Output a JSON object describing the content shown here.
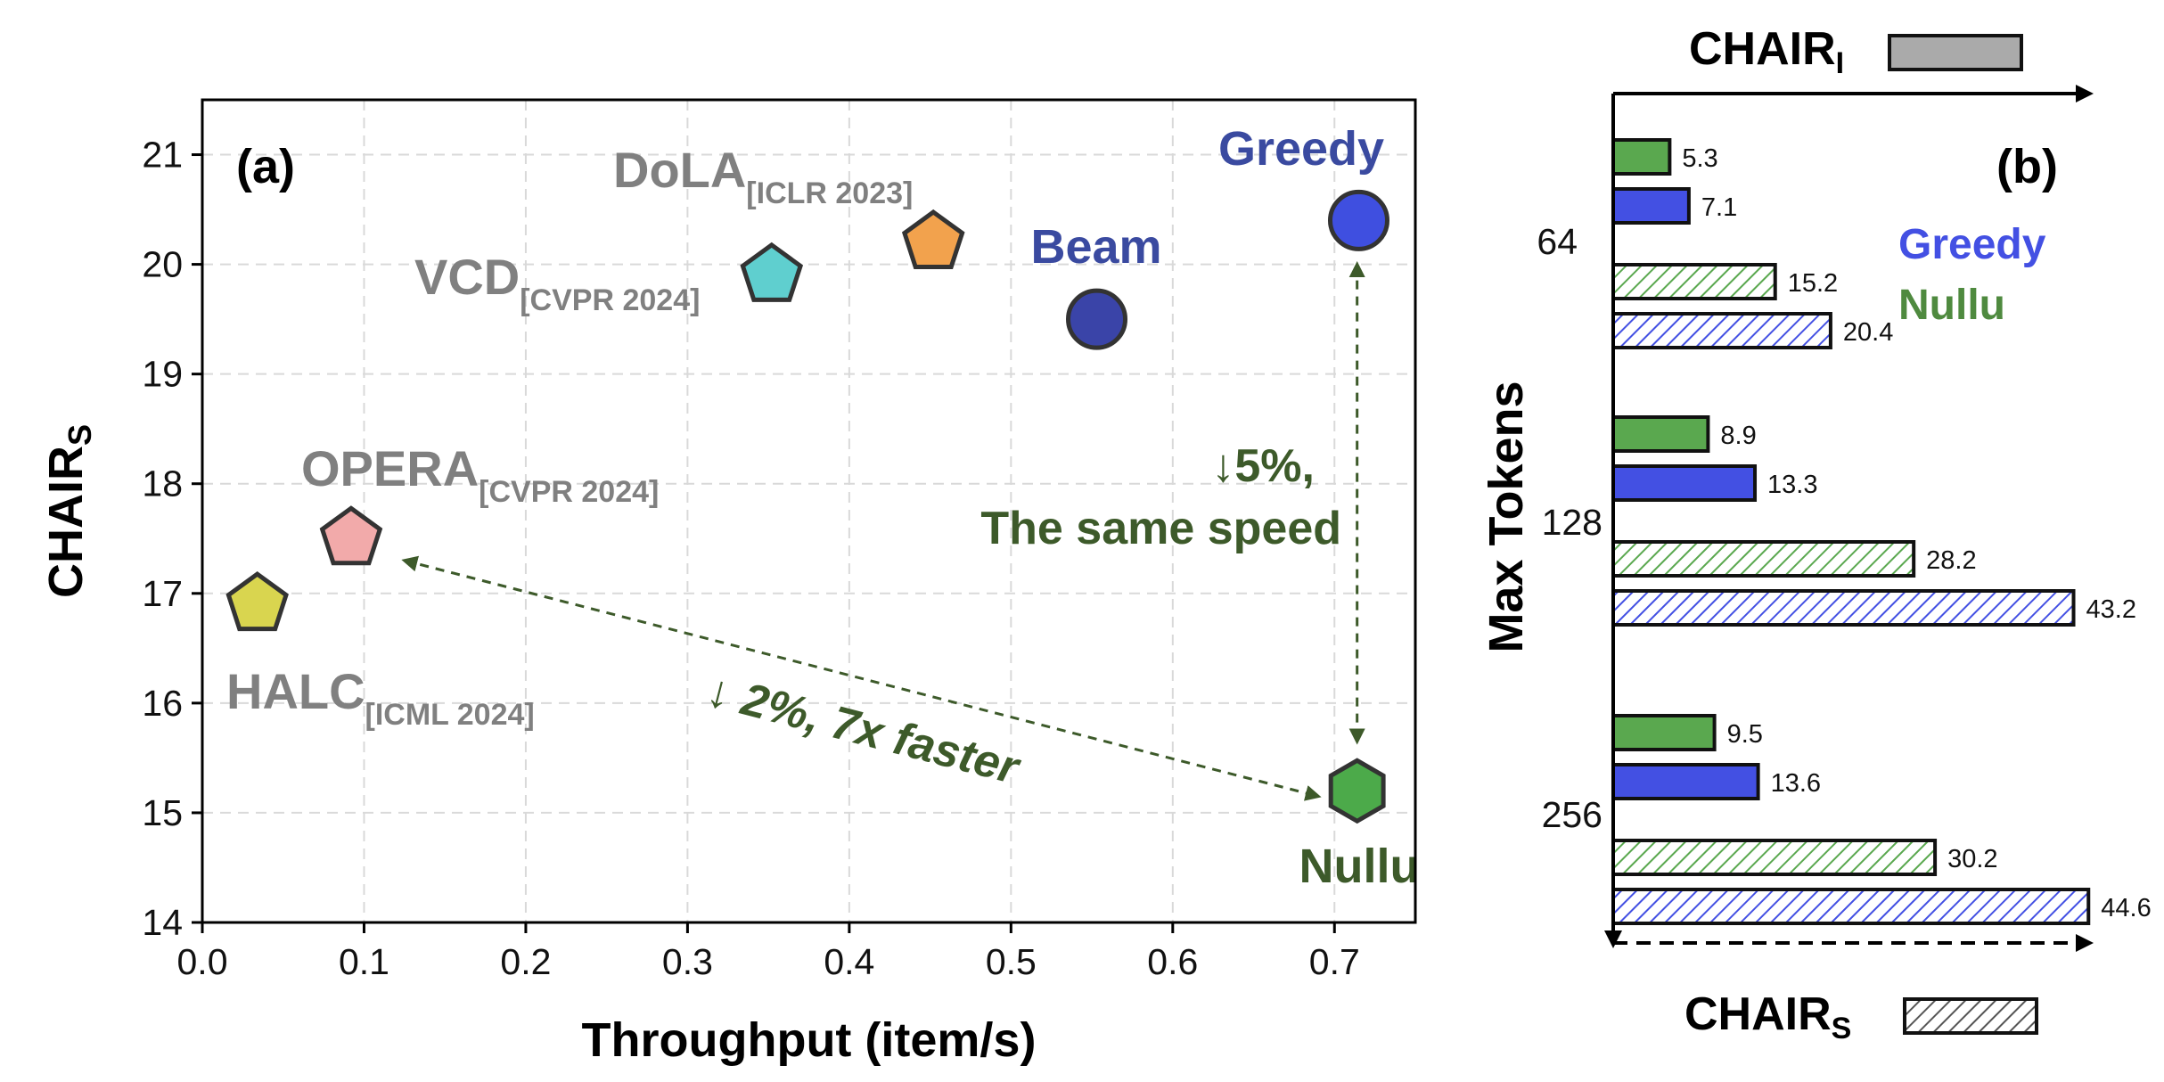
{
  "chart_data": [
    {
      "panel": "(a)",
      "type": "scatter",
      "xlabel": "Throughput (item/s)",
      "ylabel": "CHAIR",
      "ylabel_sub": "S",
      "xlim": [
        0.0,
        0.75
      ],
      "ylim": [
        14,
        21.5
      ],
      "xticks": [
        0.0,
        0.1,
        0.2,
        0.3,
        0.4,
        0.5,
        0.6,
        0.7
      ],
      "xtick_labels": [
        "0.0",
        "0.1",
        "0.2",
        "0.3",
        "0.4",
        "0.5",
        "0.6",
        "0.7"
      ],
      "yticks": [
        14,
        15,
        16,
        17,
        18,
        19,
        20,
        21
      ],
      "ytick_labels": [
        "14",
        "15",
        "16",
        "17",
        "18",
        "19",
        "20",
        "21"
      ],
      "grid": true,
      "points": [
        {
          "name": "Greedy",
          "venue": "",
          "x": 0.715,
          "y": 20.4,
          "marker": "circle",
          "fill": "#3f4fe0",
          "label_color": "#3a4aa0"
        },
        {
          "name": "Beam",
          "venue": "",
          "x": 0.553,
          "y": 19.5,
          "marker": "circle",
          "fill": "#3a44a8",
          "label_color": "#3a4aa0"
        },
        {
          "name": "DoLA",
          "venue": "[ICLR 2023]",
          "x": 0.452,
          "y": 20.2,
          "marker": "pentagon",
          "fill": "#f2a24d",
          "label_color": "#808080"
        },
        {
          "name": "VCD",
          "venue": "[CVPR 2024]",
          "x": 0.352,
          "y": 19.9,
          "marker": "pentagon",
          "fill": "#5fcfcf",
          "label_color": "#808080"
        },
        {
          "name": "OPERA",
          "venue": "[CVPR 2024]",
          "x": 0.092,
          "y": 17.5,
          "marker": "pentagon",
          "fill": "#f2aaaa",
          "label_color": "#808080"
        },
        {
          "name": "HALC",
          "venue": "[ICML 2024]",
          "x": 0.034,
          "y": 16.9,
          "marker": "pentagon",
          "fill": "#d9d54f",
          "label_color": "#808080"
        },
        {
          "name": "Nullu",
          "venue": "",
          "x": 0.714,
          "y": 15.2,
          "marker": "hexagon",
          "fill": "#4caa4a",
          "label_color": "#3d5a2a"
        }
      ],
      "annotations": [
        {
          "id": "vertical",
          "line1": "↓5%,",
          "line2": "The same speed",
          "from": [
            0.714,
            20.0
          ],
          "to": [
            0.714,
            15.65
          ]
        },
        {
          "id": "diagonal",
          "text": "↓ 2%,  7x faster",
          "from": [
            0.125,
            17.3
          ],
          "to": [
            0.69,
            15.15
          ]
        }
      ],
      "panel_label": "(a)"
    },
    {
      "panel": "(b)",
      "type": "bar",
      "orientation": "horizontal",
      "group_axis_title": "Max Tokens",
      "groups": [
        "64",
        "128",
        "256"
      ],
      "xlim": [
        0,
        46
      ],
      "series": [
        {
          "name": "Nullu",
          "metric": "CHAIR_I",
          "style": "solid",
          "color": "#5aa84f",
          "values": [
            5.3,
            8.9,
            9.5
          ]
        },
        {
          "name": "Greedy",
          "metric": "CHAIR_I",
          "style": "solid",
          "color": "#4350e3",
          "values": [
            7.1,
            13.3,
            13.6
          ]
        },
        {
          "name": "Nullu",
          "metric": "CHAIR_S",
          "style": "hatched",
          "color": "#5aa84f",
          "values": [
            15.2,
            28.2,
            30.2
          ]
        },
        {
          "name": "Greedy",
          "metric": "CHAIR_S",
          "style": "hatched",
          "color": "#4350e3",
          "values": [
            20.4,
            43.2,
            44.6
          ]
        }
      ],
      "value_labels": {
        "64": [
          "5.3",
          "7.1",
          "15.2",
          "20.4"
        ],
        "128": [
          "8.9",
          "13.3",
          "28.2",
          "43.2"
        ],
        "256": [
          "9.5",
          "13.6",
          "30.2",
          "44.6"
        ]
      },
      "top_axis_label": "CHAIR",
      "top_axis_sub": "I",
      "bottom_axis_label": "CHAIR",
      "bottom_axis_sub": "S",
      "legend": [
        {
          "name": "Greedy",
          "color": "#4350e3"
        },
        {
          "name": "Nullu",
          "color": "#4f8a3f"
        }
      ],
      "panel_label": "(b)"
    }
  ],
  "colors": {
    "green_annotation": "#3d5a2a",
    "gray_label": "#808080",
    "blue_label": "#3a4aa0"
  }
}
